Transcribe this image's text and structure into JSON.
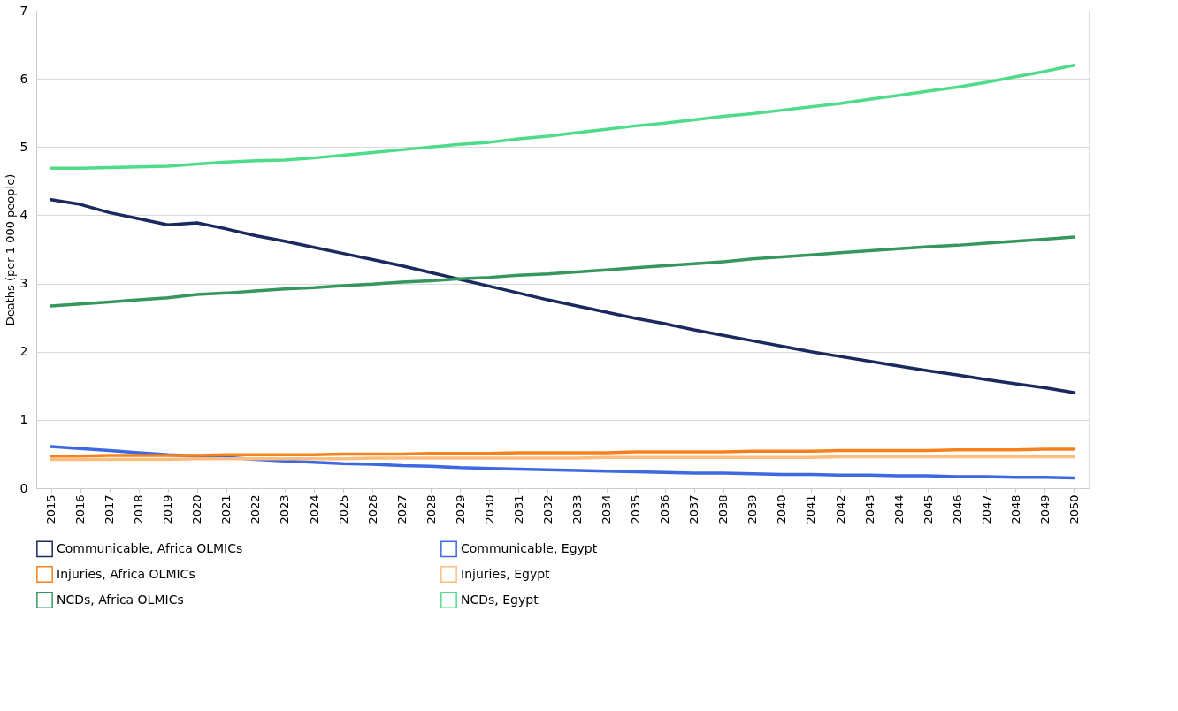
{
  "chart_data": {
    "type": "line",
    "ylabel": "Deaths (per 1 000 people)",
    "categories": [
      "2015",
      "2016",
      "2017",
      "2018",
      "2019",
      "2020",
      "2021",
      "2022",
      "2023",
      "2024",
      "2025",
      "2026",
      "2027",
      "2028",
      "2029",
      "2030",
      "2031",
      "2032",
      "2033",
      "2034",
      "2035",
      "2036",
      "2037",
      "2038",
      "2039",
      "2040",
      "2041",
      "2042",
      "2043",
      "2044",
      "2045",
      "2046",
      "2047",
      "2048",
      "2049",
      "2050"
    ],
    "series": [
      {
        "name": "Communicable, Africa OLMICs",
        "color": "#1b2a5e",
        "values": [
          4.23,
          4.16,
          4.04,
          3.95,
          3.86,
          3.89,
          3.8,
          3.7,
          3.62,
          3.53,
          3.44,
          3.35,
          3.26,
          3.16,
          3.06,
          2.96,
          2.86,
          2.76,
          2.67,
          2.58,
          2.49,
          2.41,
          2.32,
          2.24,
          2.16,
          2.08,
          2.0,
          1.93,
          1.86,
          1.79,
          1.72,
          1.66,
          1.59,
          1.53,
          1.47,
          1.4
        ]
      },
      {
        "name": "Communicable, Egypt",
        "color": "#3d68e0",
        "values": [
          0.61,
          0.58,
          0.55,
          0.52,
          0.49,
          0.47,
          0.45,
          0.42,
          0.4,
          0.38,
          0.36,
          0.35,
          0.33,
          0.32,
          0.3,
          0.29,
          0.28,
          0.27,
          0.26,
          0.25,
          0.24,
          0.23,
          0.22,
          0.22,
          0.21,
          0.2,
          0.2,
          0.19,
          0.19,
          0.18,
          0.18,
          0.17,
          0.17,
          0.16,
          0.16,
          0.15
        ]
      },
      {
        "name": "Injuries, Africa OLMICs",
        "color": "#f5821f",
        "values": [
          0.47,
          0.47,
          0.48,
          0.48,
          0.48,
          0.48,
          0.49,
          0.49,
          0.49,
          0.49,
          0.5,
          0.5,
          0.5,
          0.51,
          0.51,
          0.51,
          0.52,
          0.52,
          0.52,
          0.52,
          0.53,
          0.53,
          0.53,
          0.53,
          0.54,
          0.54,
          0.54,
          0.55,
          0.55,
          0.55,
          0.55,
          0.56,
          0.56,
          0.56,
          0.57,
          0.57
        ]
      },
      {
        "name": "Injuries, Egypt",
        "color": "#fdbd7e",
        "values": [
          0.42,
          0.42,
          0.42,
          0.42,
          0.42,
          0.43,
          0.43,
          0.43,
          0.43,
          0.43,
          0.43,
          0.44,
          0.44,
          0.44,
          0.44,
          0.44,
          0.44,
          0.44,
          0.44,
          0.45,
          0.45,
          0.45,
          0.45,
          0.45,
          0.45,
          0.45,
          0.45,
          0.46,
          0.46,
          0.46,
          0.46,
          0.46,
          0.46,
          0.46,
          0.46,
          0.46
        ]
      },
      {
        "name": "NCDs, Africa OLMICs",
        "color": "#35965e",
        "values": [
          2.67,
          2.7,
          2.73,
          2.76,
          2.79,
          2.84,
          2.86,
          2.89,
          2.92,
          2.94,
          2.97,
          2.99,
          3.02,
          3.04,
          3.07,
          3.09,
          3.12,
          3.14,
          3.17,
          3.2,
          3.23,
          3.26,
          3.29,
          3.32,
          3.36,
          3.39,
          3.42,
          3.45,
          3.48,
          3.51,
          3.54,
          3.56,
          3.59,
          3.62,
          3.65,
          3.68
        ]
      },
      {
        "name": "NCDs, Egypt",
        "color": "#4fdc8a",
        "values": [
          4.69,
          4.69,
          4.7,
          4.71,
          4.72,
          4.75,
          4.78,
          4.8,
          4.81,
          4.84,
          4.88,
          4.92,
          4.96,
          5.0,
          5.04,
          5.07,
          5.12,
          5.16,
          5.21,
          5.26,
          5.31,
          5.35,
          5.4,
          5.45,
          5.49,
          5.54,
          5.59,
          5.64,
          5.7,
          5.76,
          5.82,
          5.88,
          5.95,
          6.03,
          6.11,
          6.2
        ]
      }
    ],
    "ylim": [
      0,
      7
    ],
    "yticks": [
      0,
      1,
      2,
      3,
      4,
      5,
      6,
      7
    ],
    "grid": "y",
    "legend": "bottom",
    "line_style": "solid",
    "marker": "none"
  }
}
